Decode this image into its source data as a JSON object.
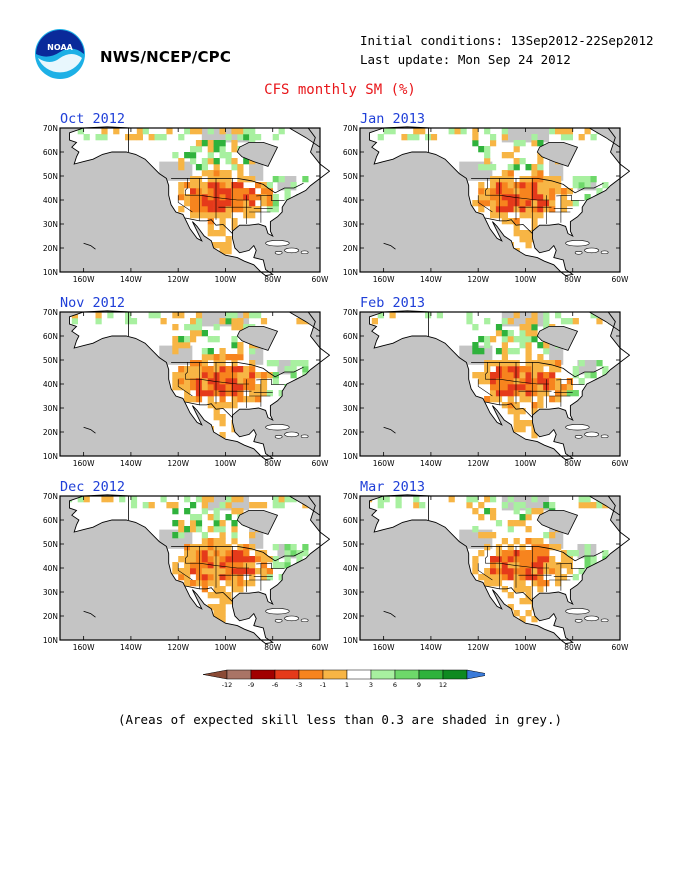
{
  "header": {
    "agency": "NWS/NCEP/CPC",
    "initial_conditions": "Initial conditions: 13Sep2012-22Sep2012",
    "last_update": "Last update: Mon Sep 24 2012",
    "title": "CFS monthly SM (%)",
    "logo_text": "NOAA"
  },
  "panels": [
    {
      "title": "Oct 2012"
    },
    {
      "title": "Jan 2013"
    },
    {
      "title": "Nov 2012"
    },
    {
      "title": "Feb 2013"
    },
    {
      "title": "Dec 2012"
    },
    {
      "title": "Mar 2013"
    }
  ],
  "map": {
    "lat_labels": [
      "70N",
      "60N",
      "50N",
      "40N",
      "30N",
      "20N",
      "10N"
    ],
    "lon_labels": [
      "160W",
      "140W",
      "120W",
      "100W",
      "80W",
      "60W"
    ],
    "lat_range": [
      10,
      70
    ],
    "lon_range": [
      -170,
      -60
    ]
  },
  "legend": {
    "ticks": [
      "-12",
      "-9",
      "-6",
      "-3",
      "-1",
      "1",
      "3",
      "6",
      "9",
      "12"
    ],
    "colors": [
      "#8a4a35",
      "#a97466",
      "#a10000",
      "#e53a1a",
      "#f7841e",
      "#f7b545",
      "#ffffff",
      "#a8f0a0",
      "#6ed86a",
      "#2fb23c",
      "#0e8a20",
      "#3a7ad8"
    ]
  },
  "footnote": "(Areas of expected skill less than 0.3 are shaded in grey.)",
  "colors": {
    "grey": "#c4c4c4",
    "title_red": "#e8161a",
    "panel_title_blue": "#1f3fd8"
  }
}
